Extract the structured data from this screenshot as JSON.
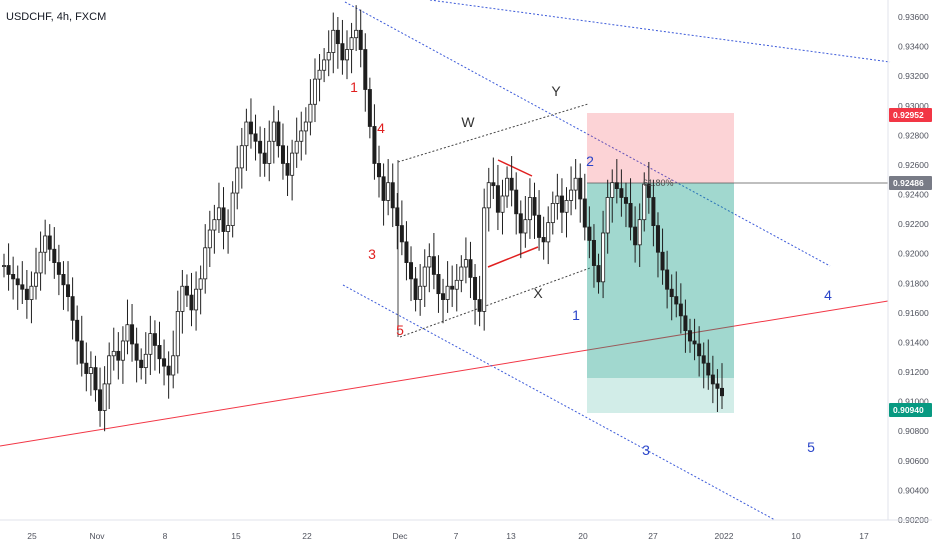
{
  "title": "USDCHF, 4h, FXCM",
  "chart_data": {
    "type": "candlestick",
    "symbol": "USDCHF",
    "timeframe": "4h",
    "source": "FXCM",
    "ylim": [
      0.902,
      0.937
    ],
    "y_ticks": [
      "0.93600",
      "0.93400",
      "0.93200",
      "0.93000",
      "0.92800",
      "0.92600",
      "0.92400",
      "0.92200",
      "0.92000",
      "0.91800",
      "0.91600",
      "0.91400",
      "0.91200",
      "0.91000",
      "0.90800",
      "0.90600",
      "0.90400",
      "0.90200"
    ],
    "x_ticks": [
      "25",
      "Nov",
      "8",
      "15",
      "22",
      "Dec",
      "7",
      "13",
      "20",
      "27",
      "2022",
      "10",
      "17"
    ],
    "price_badges": [
      {
        "value": "0.92952",
        "color": "#f23645"
      },
      {
        "value": "0.92486",
        "color": "#787b86"
      },
      {
        "value": "0.90940",
        "color": "#089981"
      }
    ],
    "fib_label": "61.80%",
    "wave_labels": [
      {
        "text": "1",
        "color": "#e01f1f"
      },
      {
        "text": "4",
        "color": "#e01f1f"
      },
      {
        "text": "3",
        "color": "#e01f1f"
      },
      {
        "text": "5",
        "color": "#e01f1f"
      },
      {
        "text": "W",
        "color": "#333333"
      },
      {
        "text": "Y",
        "color": "#333333"
      },
      {
        "text": "X",
        "color": "#333333"
      },
      {
        "text": "1",
        "color": "#2a45c9"
      },
      {
        "text": "2",
        "color": "#2a45c9"
      },
      {
        "text": "3",
        "color": "#2a45c9"
      },
      {
        "text": "4",
        "color": "#2a45c9"
      },
      {
        "text": "5",
        "color": "#2a45c9"
      }
    ],
    "series": [
      {
        "values": [
          0.9192,
          0.9186,
          0.9183,
          0.9179,
          0.9176,
          0.9169,
          0.9178,
          0.9187,
          0.9201,
          0.9212,
          0.9203,
          0.9194,
          0.9186,
          0.9179,
          0.9171,
          0.9155,
          0.9141,
          0.9126,
          0.9119,
          0.9123,
          0.9108,
          0.9094,
          0.9112,
          0.9131,
          0.9134,
          0.9128,
          0.9141,
          0.9152,
          0.9139,
          0.9128,
          0.9123,
          0.9132,
          0.9146,
          0.9138,
          0.9129,
          0.9124,
          0.9118,
          0.9131,
          0.9161,
          0.9178,
          0.9172,
          0.9162,
          0.9176,
          0.9183,
          0.9204,
          0.9216,
          0.9223,
          0.9231,
          0.9215,
          0.9219,
          0.9241,
          0.9258,
          0.9273,
          0.9289,
          0.9281,
          0.9276,
          0.9268,
          0.9261,
          0.9276,
          0.9289,
          0.9273,
          0.9261,
          0.9253,
          0.9268,
          0.9276,
          0.9283,
          0.9289,
          0.9301,
          0.9318,
          0.9324,
          0.9331,
          0.9336,
          0.9351,
          0.9342,
          0.9331,
          0.9338,
          0.9346,
          0.9351,
          0.9338,
          0.9311,
          0.9286,
          0.9261,
          0.9252,
          0.9236,
          0.9248,
          0.9231,
          0.9219,
          0.9208,
          0.9194,
          0.9183,
          0.9169,
          0.9178,
          0.9191,
          0.9198,
          0.9186,
          0.9173,
          0.9169,
          0.9178,
          0.9176,
          0.9182,
          0.9191,
          0.9196,
          0.9184,
          0.9169,
          0.9161,
          0.9231,
          0.9248,
          0.9246,
          0.9228,
          0.9239,
          0.9251,
          0.9243,
          0.9227,
          0.9214,
          0.9223,
          0.9238,
          0.9226,
          0.9211,
          0.9208,
          0.9221,
          0.9234,
          0.9239,
          0.9228,
          0.9236,
          0.9243,
          0.9251,
          0.9237,
          0.9218,
          0.9209,
          0.9192,
          0.9181,
          0.9214,
          0.9238,
          0.9248,
          0.9244,
          0.9238,
          0.9234,
          0.9218,
          0.9206,
          0.9223,
          0.9247,
          0.9238,
          0.9219,
          0.9201,
          0.9189,
          0.9176,
          0.9171,
          0.9166,
          0.9158,
          0.9148,
          0.9141,
          0.9139,
          0.9131,
          0.9126,
          0.9118,
          0.9112,
          0.9109,
          0.9104
        ]
      }
    ]
  }
}
